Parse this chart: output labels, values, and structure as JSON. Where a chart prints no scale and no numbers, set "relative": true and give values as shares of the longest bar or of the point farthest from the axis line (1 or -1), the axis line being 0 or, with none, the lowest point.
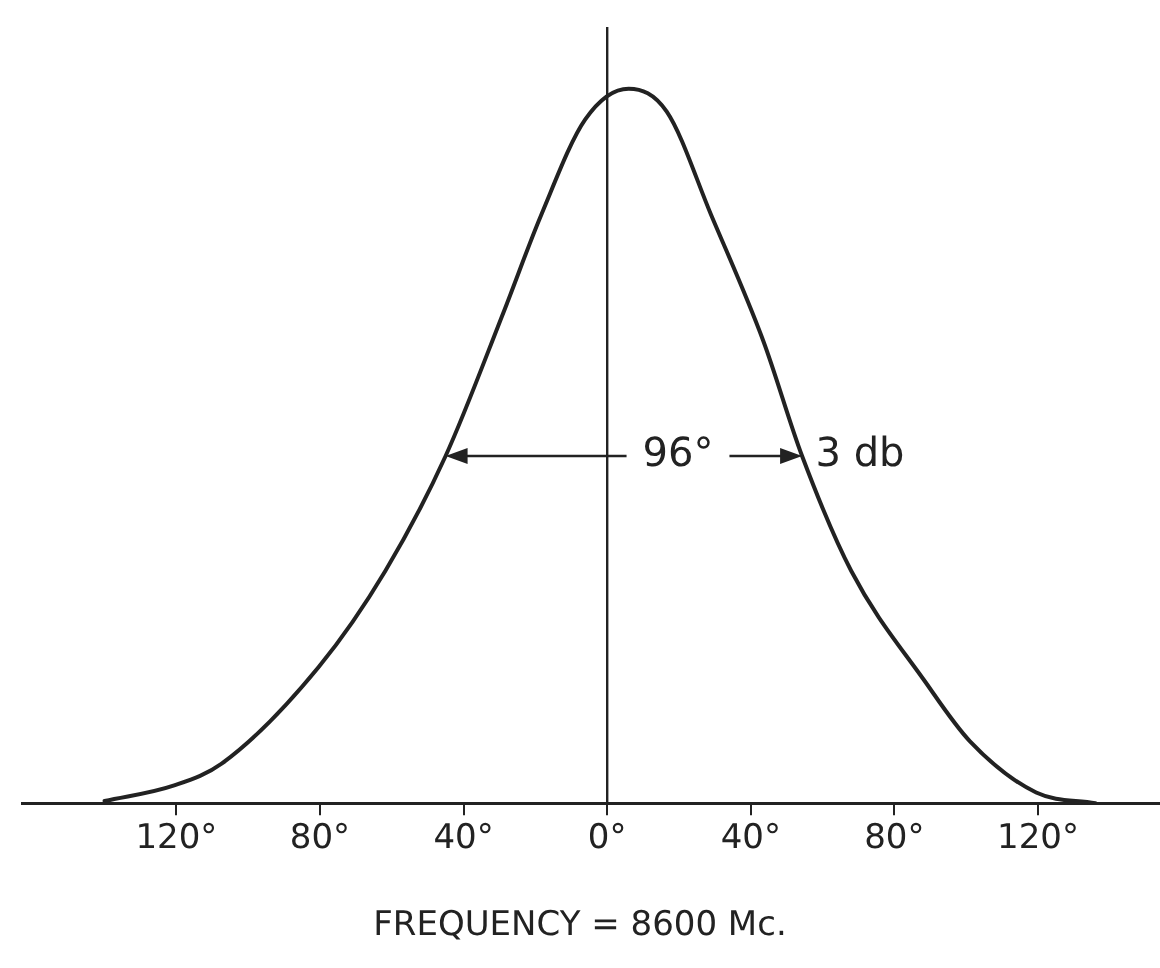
{
  "chart_data": {
    "type": "line",
    "relative": true,
    "tick_labels": "x",
    "marker": "none",
    "line_style": "solid",
    "legend": false,
    "xlim": [
      -163,
      154
    ],
    "xticks": [
      {
        "value": -120,
        "label": "120°"
      },
      {
        "value": -80,
        "label": "80°"
      },
      {
        "value": -40,
        "label": "40°"
      },
      {
        "value": 0,
        "label": "0°"
      },
      {
        "value": 40,
        "label": "40°"
      },
      {
        "value": 80,
        "label": "80°"
      },
      {
        "value": 120,
        "label": "120°"
      }
    ],
    "annotations": [
      "96°",
      "3 db",
      "FREQUENCY = 8600 Mc."
    ],
    "series": [
      {
        "color": "#222222",
        "x": [
          -140,
          -120.6,
          -107.2,
          -80.3,
          -61.8,
          -45,
          -28.8,
          -18.4,
          -6.1,
          6,
          16.6,
          29,
          43.5,
          54.3,
          68,
          88.6,
          101,
          119.5,
          136
        ],
        "values": [
          0.003,
          0.025,
          0.056,
          0.191,
          0.325,
          0.486,
          0.688,
          0.823,
          0.957,
          1,
          0.968,
          0.823,
          0.647,
          0.486,
          0.325,
          0.17,
          0.087,
          0.015,
          0
        ]
      }
    ]
  }
}
